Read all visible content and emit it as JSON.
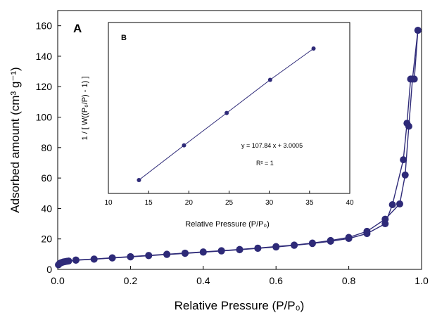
{
  "chart_data": [
    {
      "type": "line",
      "panel_label": "A",
      "xlabel": "Relative Pressure (P/P₀)",
      "ylabel": "Adsorbed amount (cm³ g⁻¹)",
      "xlim": [
        0.0,
        1.0
      ],
      "ylim": [
        0,
        170
      ],
      "xticks": [
        "0.0",
        "0.2",
        "0.4",
        "0.6",
        "0.8",
        "1.0"
      ],
      "yticks": [
        "0",
        "20",
        "40",
        "60",
        "80",
        "100",
        "120",
        "140",
        "160"
      ],
      "marker_color": "#2e2a78",
      "line_color": "#2e2a78",
      "series": [
        {
          "x": [
            0.002,
            0.005,
            0.008,
            0.012,
            0.016,
            0.02,
            0.025,
            0.03,
            0.05,
            0.1,
            0.15,
            0.2,
            0.25,
            0.3,
            0.35,
            0.4,
            0.45,
            0.5,
            0.55,
            0.6,
            0.65,
            0.7,
            0.75,
            0.8,
            0.85,
            0.9,
            0.92,
            0.95,
            0.96,
            0.97,
            0.98,
            0.99
          ],
          "y": [
            3,
            3.8,
            4.2,
            4.6,
            4.9,
            5.1,
            5.3,
            5.5,
            6.0,
            6.7,
            7.5,
            8.2,
            9.0,
            9.8,
            10.5,
            11.3,
            12.1,
            12.9,
            13.8,
            14.7,
            15.8,
            17.0,
            18.5,
            20.3,
            23.5,
            30.0,
            42.5,
            72.0,
            96.0,
            125.0,
            125.0,
            157.0
          ]
        },
        {
          "x": [
            0.99,
            0.975,
            0.965,
            0.955,
            0.94,
            0.9,
            0.85,
            0.8,
            0.75,
            0.7,
            0.65,
            0.6,
            0.55,
            0.5,
            0.45,
            0.4,
            0.35,
            0.3,
            0.25,
            0.2,
            0.15,
            0.1,
            0.05
          ],
          "y": [
            157.0,
            125.0,
            94.0,
            62.0,
            43.0,
            33.0,
            25.0,
            21.0,
            19.0,
            17.3,
            16.0,
            15.0,
            14.0,
            13.1,
            12.3,
            11.5,
            10.7,
            10.0,
            9.2,
            8.4,
            7.6,
            6.8,
            6.2
          ]
        }
      ]
    },
    {
      "type": "line",
      "panel_label": "B",
      "xlabel": "Relative Pressure (P/P₀)",
      "ylabel": "1 / [ W((P₀/P) - 1) ]",
      "xlim": [
        10,
        40
      ],
      "ylim": [
        null,
        null
      ],
      "xticks": [
        "10",
        "15",
        "20",
        "25",
        "30",
        "35",
        "40"
      ],
      "annotation": [
        "y = 107.84 x + 3.0005",
        "R² = 1"
      ],
      "series": [
        {
          "x": [
            13.8,
            19.4,
            24.7,
            30.1,
            35.5
          ],
          "y": [
            0.0,
            0.264,
            0.51,
            0.762,
            1.0
          ]
        }
      ]
    }
  ]
}
